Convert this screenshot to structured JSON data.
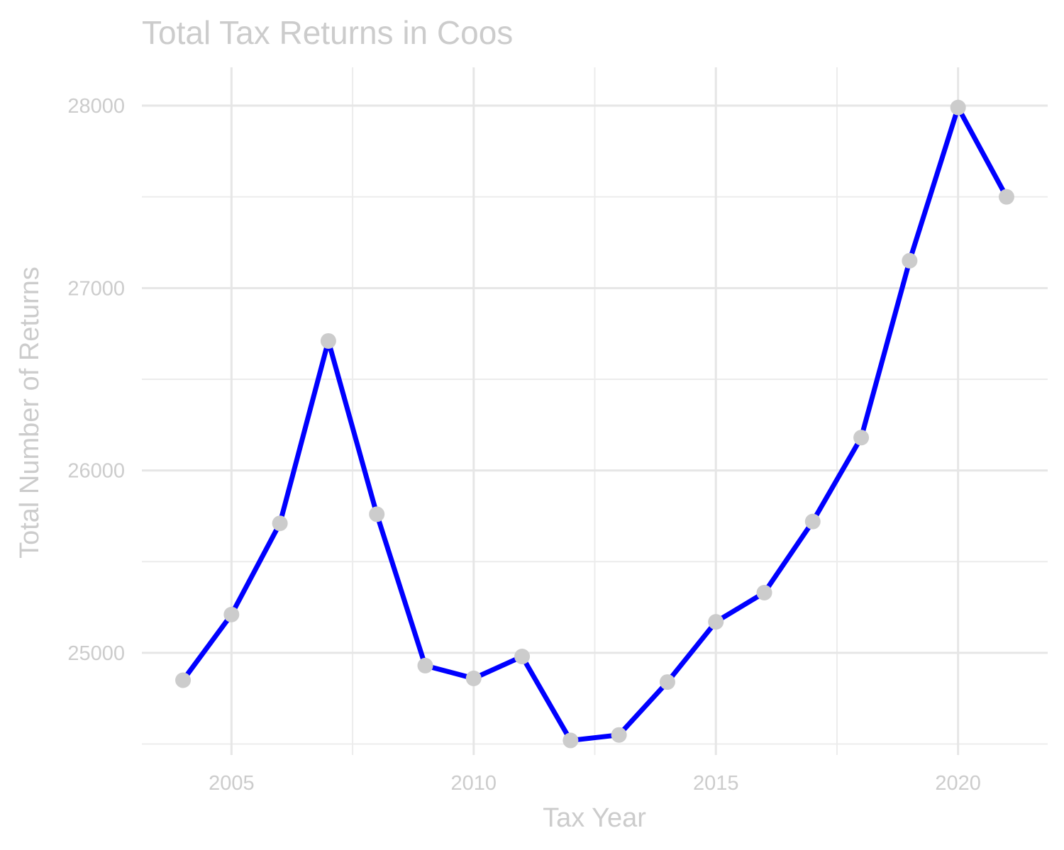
{
  "chart_data": {
    "type": "line",
    "title": "Total Tax Returns in Coos",
    "xlabel": "Tax Year",
    "ylabel": "Total Number of Returns",
    "x": [
      2004,
      2005,
      2006,
      2007,
      2008,
      2009,
      2010,
      2011,
      2012,
      2013,
      2014,
      2015,
      2016,
      2017,
      2018,
      2019,
      2020,
      2021
    ],
    "series": [
      {
        "values": [
          24850,
          25210,
          25710,
          26710,
          25760,
          24930,
          24860,
          24980,
          24520,
          24550,
          24840,
          25170,
          25330,
          25720,
          26180,
          27150,
          27990,
          27500
        ]
      }
    ],
    "xlim": [
      2003.15,
      2021.85
    ],
    "ylim": [
      24440,
      28210
    ],
    "x_ticks": [
      2005,
      2010,
      2015,
      2020
    ],
    "x_tick_labels": [
      "2005",
      "2010",
      "2015",
      "2020"
    ],
    "y_ticks": [
      25000,
      26000,
      27000,
      28000
    ],
    "y_tick_labels": [
      "25000",
      "26000",
      "27000",
      "28000"
    ],
    "grid": true,
    "line_color": "#0000ff",
    "point_color": "#cccccc",
    "text_color": "#cccccc"
  }
}
